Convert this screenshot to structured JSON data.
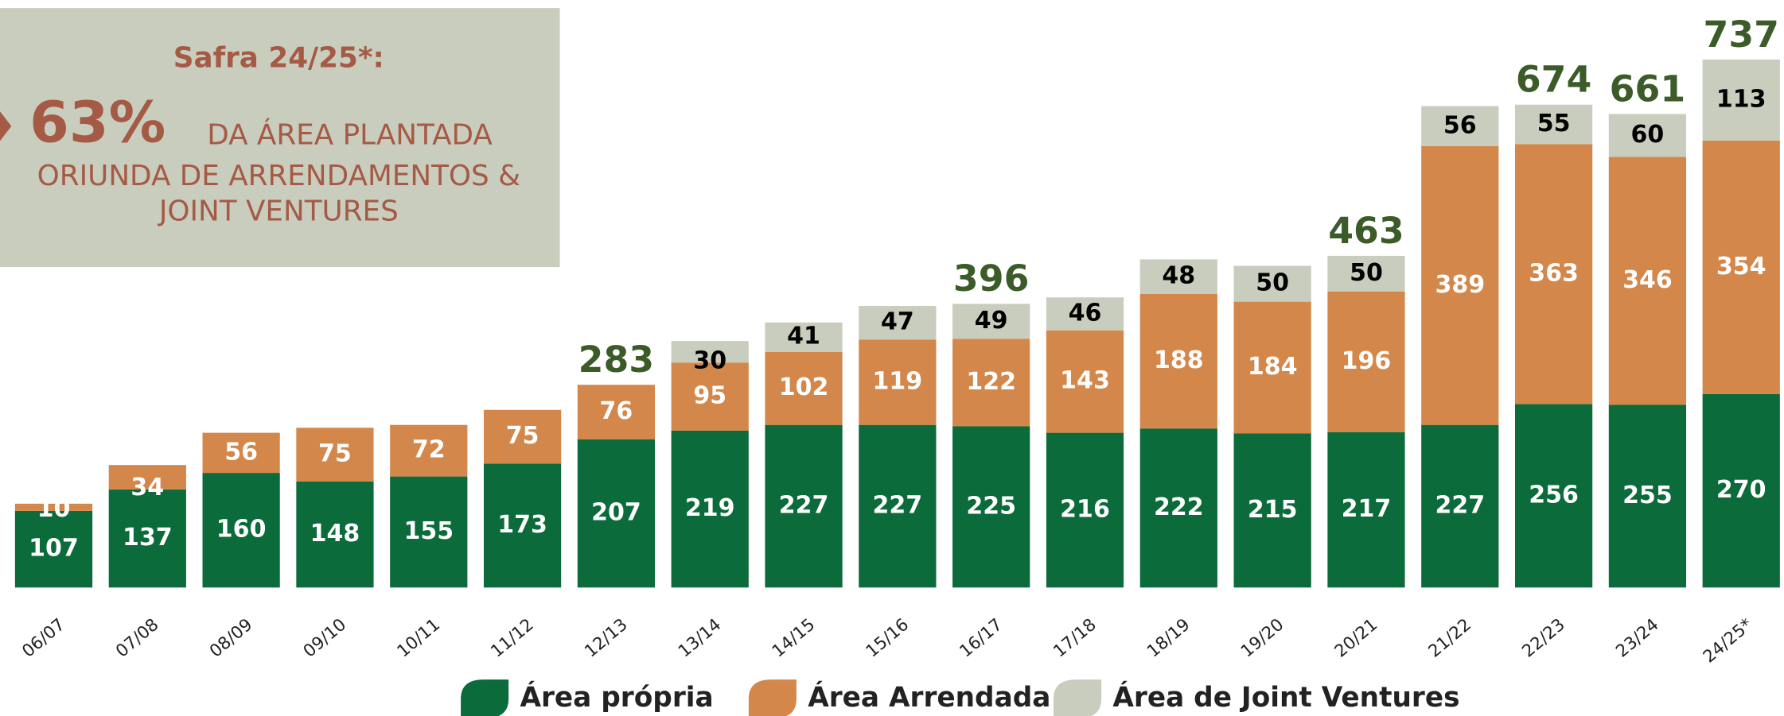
{
  "chart_data": {
    "type": "stacked_bar",
    "callout": {
      "title": "Safra 24/25*:",
      "percent": "63%",
      "lines": [
        "DA ÁREA PLANTADA",
        "ORIUNDA DE ARRENDAMENTOS &",
        "JOINT VENTURES"
      ]
    },
    "categories": [
      "06/07",
      "07/08",
      "08/09",
      "09/10",
      "10/11",
      "11/12",
      "12/13",
      "13/14",
      "14/15",
      "15/16",
      "16/17",
      "17/18",
      "18/19",
      "19/20",
      "20/21",
      "21/22",
      "22/23",
      "23/24",
      "24/25*"
    ],
    "series": [
      {
        "name": "Área própria",
        "color": "#0b6b3a",
        "label_color": "#ffffff",
        "values": [
          107,
          137,
          160,
          148,
          155,
          173,
          207,
          219,
          227,
          227,
          225,
          216,
          222,
          215,
          217,
          227,
          256,
          255,
          270
        ]
      },
      {
        "name": "Área Arrendada",
        "color": "#d4874a",
        "label_color": "#ffffff",
        "values": [
          10,
          34,
          56,
          75,
          72,
          75,
          76,
          95,
          102,
          119,
          122,
          143,
          188,
          184,
          196,
          389,
          363,
          346,
          354
        ]
      },
      {
        "name": "Área de Joint Ventures",
        "color": "#c9cdbd",
        "label_color": "#000000",
        "values": [
          null,
          null,
          null,
          null,
          null,
          null,
          null,
          30,
          41,
          47,
          49,
          46,
          48,
          50,
          50,
          56,
          55,
          60,
          113
        ]
      }
    ],
    "totals": [
      null,
      null,
      null,
      null,
      null,
      null,
      283,
      null,
      null,
      null,
      396,
      null,
      null,
      null,
      463,
      null,
      674,
      661,
      737
    ],
    "total_color": "#3b5b28",
    "ylim": [
      0,
      820
    ]
  }
}
